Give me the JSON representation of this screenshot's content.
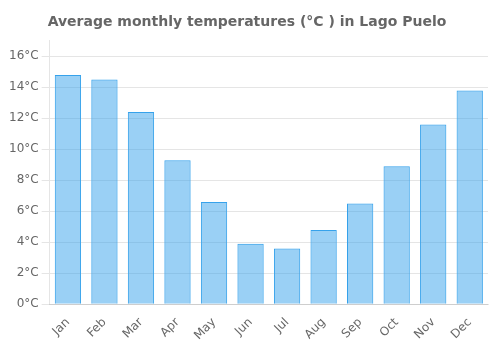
{
  "chart_data": {
    "type": "bar",
    "title": "Average monthly temperatures (°C ) in Lago Puelo",
    "categories": [
      "Jan",
      "Feb",
      "Mar",
      "Apr",
      "May",
      "Jun",
      "Jul",
      "Aug",
      "Sep",
      "Oct",
      "Nov",
      "Dec"
    ],
    "values": [
      14.8,
      14.5,
      12.4,
      9.3,
      6.6,
      3.9,
      3.6,
      4.8,
      6.5,
      8.9,
      11.6,
      13.8
    ],
    "ylim": [
      0,
      17
    ],
    "yticks": [
      {
        "value": 0,
        "label": "0°C"
      },
      {
        "value": 2,
        "label": "2°C"
      },
      {
        "value": 4,
        "label": "4°C"
      },
      {
        "value": 6,
        "label": "6°C"
      },
      {
        "value": 8,
        "label": "8°C"
      },
      {
        "value": 10,
        "label": "10°C"
      },
      {
        "value": 12,
        "label": "12°C"
      },
      {
        "value": 14,
        "label": "14°C"
      },
      {
        "value": 16,
        "label": "16°C"
      }
    ],
    "grid": true
  }
}
